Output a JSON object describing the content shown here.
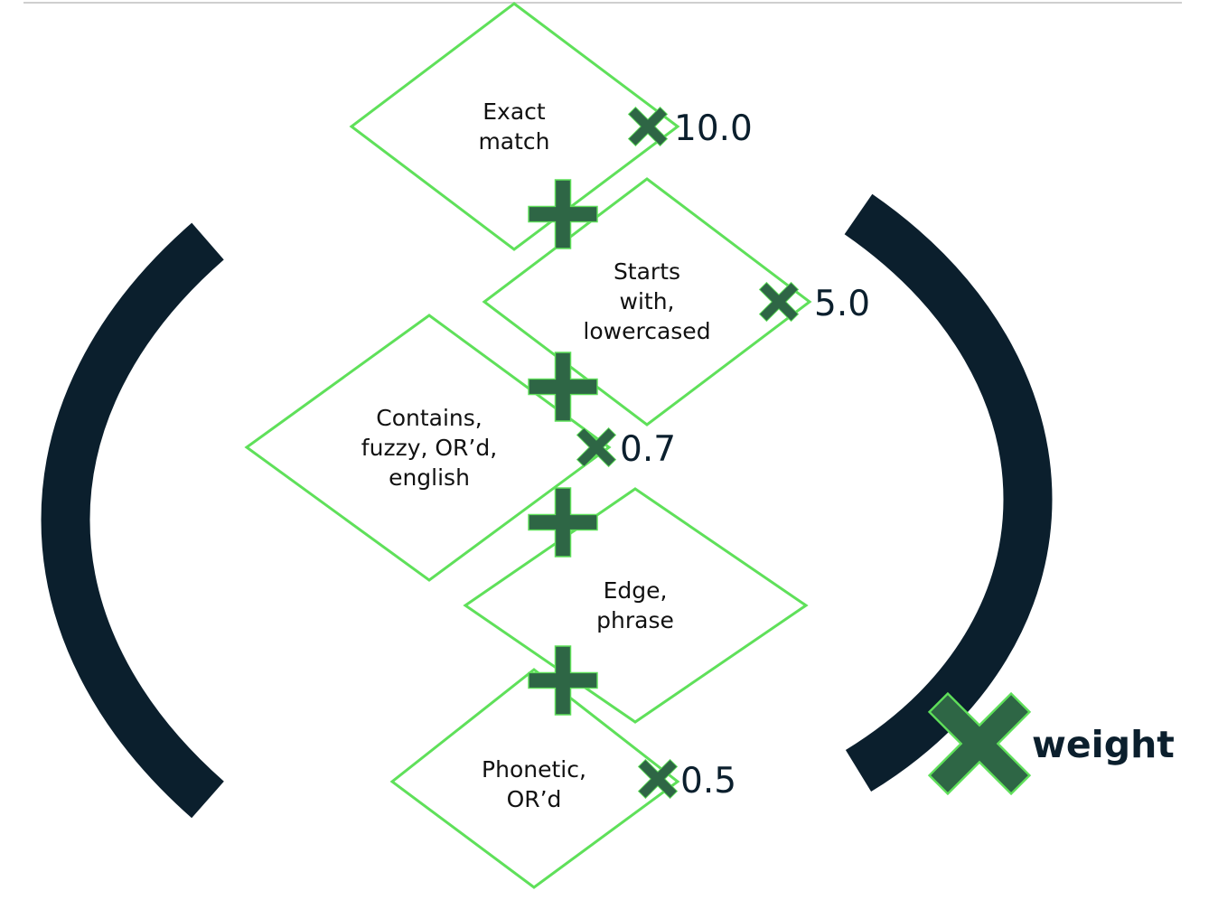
{
  "diagram": {
    "stages": [
      {
        "label_lines": [
          "Exact",
          "match"
        ],
        "weight": "10.0"
      },
      {
        "label_lines": [
          "Starts",
          "with,",
          "lowercased"
        ],
        "weight": "5.0"
      },
      {
        "label_lines": [
          "Contains,",
          "fuzzy, OR’d,",
          "english"
        ],
        "weight": "0.7"
      },
      {
        "label_lines": [
          "Edge,",
          "phrase"
        ],
        "weight": ""
      },
      {
        "label_lines": [
          "Phonetic,",
          "OR’d"
        ],
        "weight": "0.5"
      }
    ],
    "multiplier_label": "weight"
  },
  "colors": {
    "diamond_stroke": "#5fe05a",
    "operator_fill": "#2e6645",
    "parenthesis": "#0b1f2d"
  },
  "icons": {
    "operator_between_stages": "plus-icon",
    "operator_weight": "multiply-icon"
  }
}
